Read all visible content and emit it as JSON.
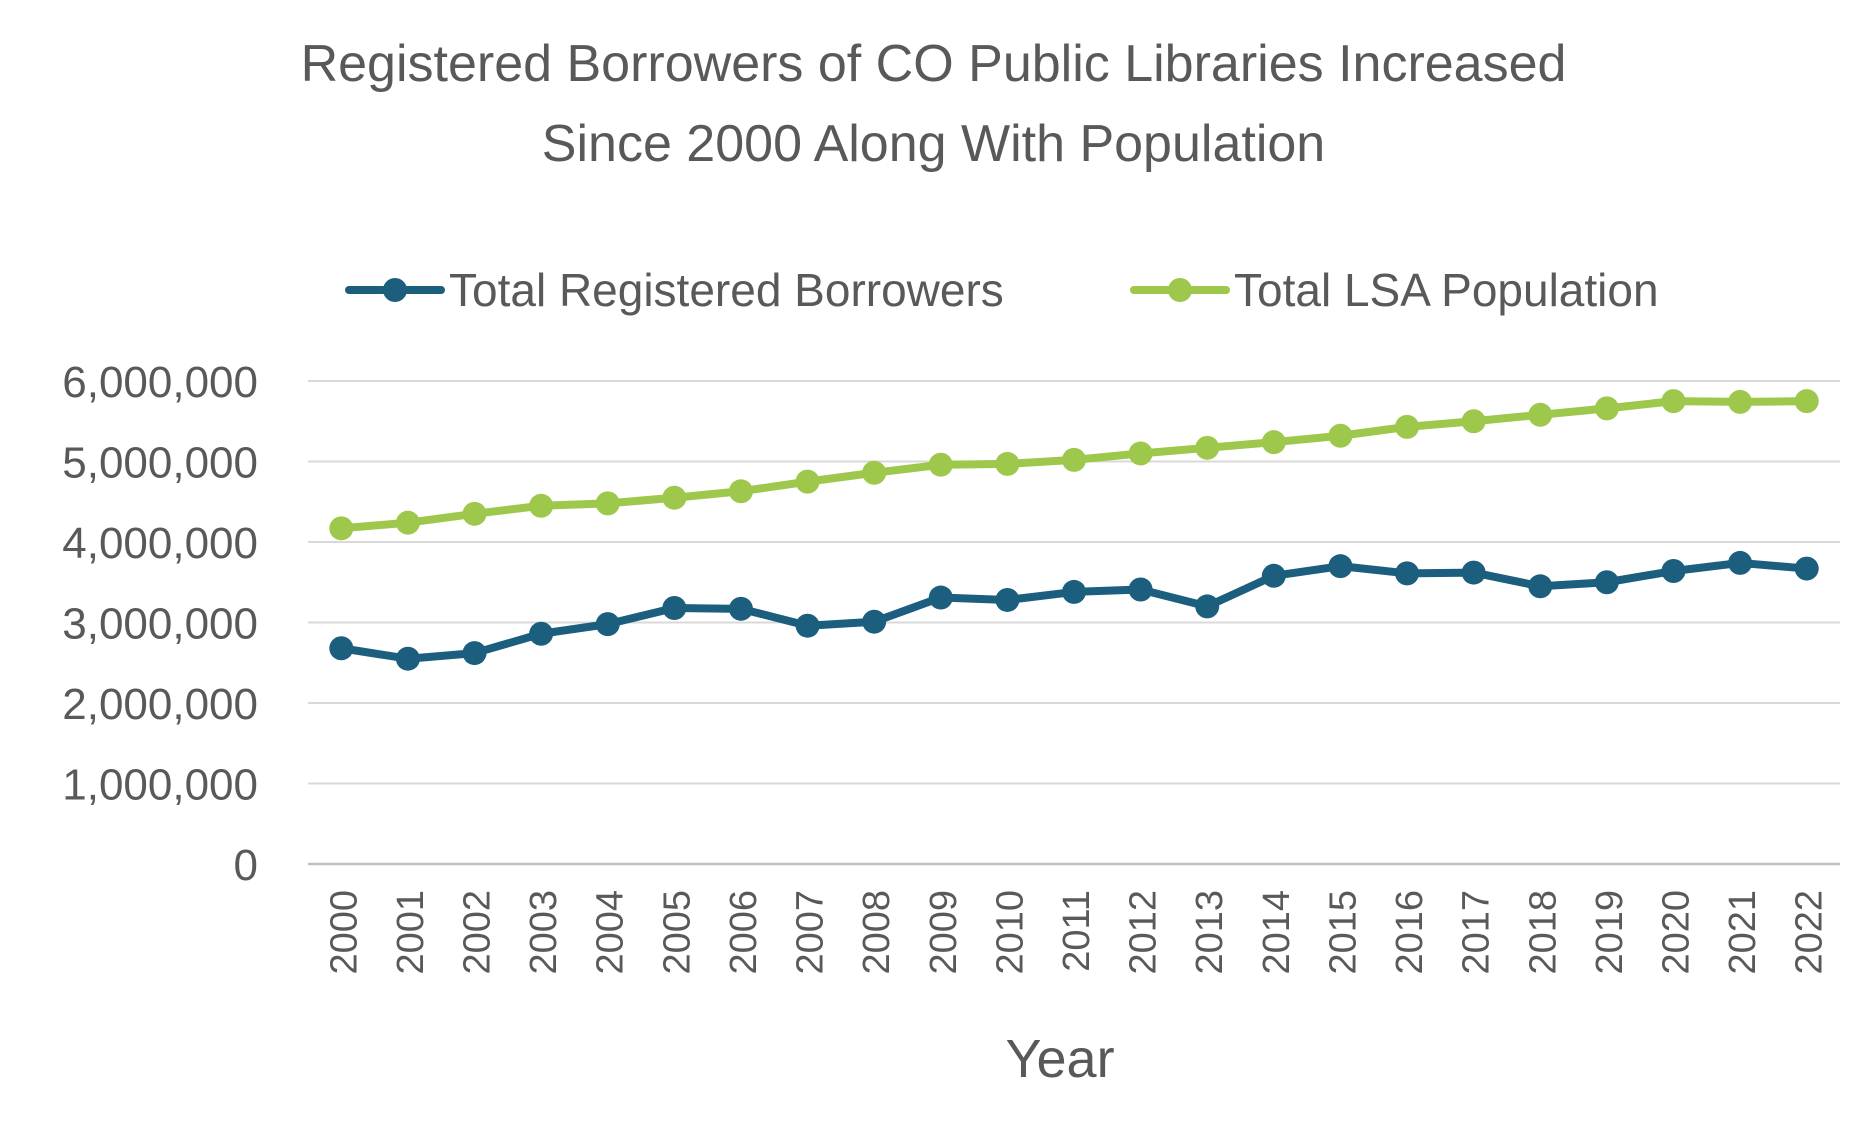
{
  "chart_data": {
    "type": "line",
    "title": "Registered Borrowers of CO Public Libraries Increased\nSince 2000 Along With Population",
    "xlabel": "Year",
    "ylabel": "",
    "ylim": [
      0,
      6000000
    ],
    "yticks": [
      0,
      1000000,
      2000000,
      3000000,
      4000000,
      5000000,
      6000000
    ],
    "ytick_labels": [
      "0",
      "1,000,000",
      "2,000,000",
      "3,000,000",
      "4,000,000",
      "5,000,000",
      "6,000,000"
    ],
    "grid": "horizontal",
    "legend_position": "top",
    "categories": [
      "2000",
      "2001",
      "2002",
      "2003",
      "2004",
      "2005",
      "2006",
      "2007",
      "2008",
      "2009",
      "2010",
      "2011",
      "2012",
      "2013",
      "2014",
      "2015",
      "2016",
      "2017",
      "2018",
      "2019",
      "2020",
      "2021",
      "2022"
    ],
    "series": [
      {
        "name": "Total Registered Borrowers",
        "color": "#1b5e7e",
        "values": [
          2680000,
          2550000,
          2620000,
          2860000,
          2980000,
          3180000,
          3170000,
          2960000,
          3010000,
          3310000,
          3280000,
          3380000,
          3410000,
          3200000,
          3580000,
          3700000,
          3610000,
          3620000,
          3450000,
          3500000,
          3640000,
          3740000,
          3670000
        ]
      },
      {
        "name": "Total LSA Population",
        "color": "#9dc84b",
        "values": [
          4170000,
          4240000,
          4350000,
          4450000,
          4480000,
          4550000,
          4630000,
          4750000,
          4860000,
          4960000,
          4970000,
          5020000,
          5100000,
          5170000,
          5240000,
          5320000,
          5430000,
          5500000,
          5580000,
          5660000,
          5750000,
          5740000,
          5750000
        ]
      }
    ]
  }
}
